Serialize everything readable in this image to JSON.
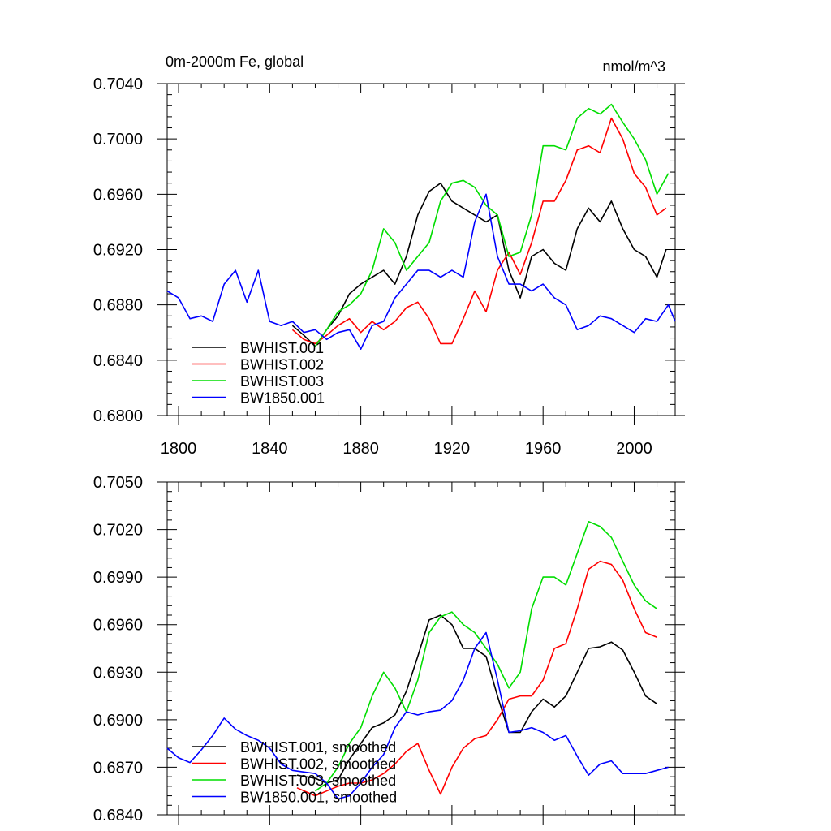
{
  "chart_data": [
    {
      "type": "line",
      "title": "0m-2000m Fe, global",
      "units": "nmol/m^3",
      "xlabel": "",
      "ylabel": "",
      "xlim": [
        1795,
        2018
      ],
      "ylim": [
        0.68,
        0.704
      ],
      "x_ticks": [
        {
          "v": 1800,
          "label": "1800"
        },
        {
          "v": 1840,
          "label": "1840"
        },
        {
          "v": 1880,
          "label": "1880"
        },
        {
          "v": 1920,
          "label": "1920"
        },
        {
          "v": 1960,
          "label": "1960"
        },
        {
          "v": 2000,
          "label": "2000"
        }
      ],
      "y_ticks": [
        {
          "v": 0.68,
          "label": "0.6800"
        },
        {
          "v": 0.684,
          "label": "0.6840"
        },
        {
          "v": 0.688,
          "label": "0.6880"
        },
        {
          "v": 0.692,
          "label": "0.6920"
        },
        {
          "v": 0.696,
          "label": "0.6960"
        },
        {
          "v": 0.7,
          "label": "0.7000"
        },
        {
          "v": 0.704,
          "label": "0.7040"
        }
      ],
      "legend_position": "bottom-left",
      "series": [
        {
          "name": "BWHIST.001",
          "color": "#000000",
          "x": [
            1850,
            1855,
            1860,
            1865,
            1870,
            1875,
            1880,
            1885,
            1890,
            1895,
            1900,
            1905,
            1910,
            1915,
            1920,
            1925,
            1930,
            1935,
            1940,
            1945,
            1950,
            1955,
            1960,
            1965,
            1970,
            1975,
            1980,
            1985,
            1990,
            1995,
            2000,
            2005,
            2010,
            2014
          ],
          "y": [
            0.6865,
            0.6858,
            0.685,
            0.6862,
            0.6872,
            0.6888,
            0.6895,
            0.69,
            0.6905,
            0.6895,
            0.6915,
            0.6945,
            0.6962,
            0.6968,
            0.6955,
            0.695,
            0.6945,
            0.694,
            0.6945,
            0.6905,
            0.6885,
            0.6915,
            0.692,
            0.691,
            0.6905,
            0.6935,
            0.695,
            0.694,
            0.6955,
            0.6935,
            0.692,
            0.6915,
            0.69,
            0.692
          ]
        },
        {
          "name": "BWHIST.002",
          "color": "#ff0000",
          "x": [
            1850,
            1855,
            1860,
            1865,
            1870,
            1875,
            1880,
            1885,
            1890,
            1895,
            1900,
            1905,
            1910,
            1915,
            1920,
            1925,
            1930,
            1935,
            1940,
            1945,
            1950,
            1955,
            1960,
            1965,
            1970,
            1975,
            1980,
            1985,
            1990,
            1995,
            2000,
            2005,
            2010,
            2014
          ],
          "y": [
            0.6862,
            0.6855,
            0.6852,
            0.6858,
            0.6865,
            0.687,
            0.686,
            0.6868,
            0.6862,
            0.6868,
            0.6878,
            0.6882,
            0.687,
            0.6852,
            0.6852,
            0.687,
            0.689,
            0.6875,
            0.6905,
            0.6918,
            0.6902,
            0.6925,
            0.6955,
            0.6955,
            0.697,
            0.6992,
            0.6995,
            0.699,
            0.7015,
            0.7,
            0.6975,
            0.6965,
            0.6945,
            0.695
          ]
        },
        {
          "name": "BWHIST.003",
          "color": "#00dd00",
          "x": [
            1860,
            1865,
            1870,
            1875,
            1880,
            1885,
            1890,
            1895,
            1900,
            1905,
            1910,
            1915,
            1920,
            1925,
            1930,
            1935,
            1940,
            1945,
            1950,
            1955,
            1960,
            1965,
            1970,
            1975,
            1980,
            1985,
            1990,
            1995,
            2000,
            2005,
            2010,
            2015
          ],
          "y": [
            0.685,
            0.6862,
            0.6875,
            0.688,
            0.6888,
            0.6905,
            0.6935,
            0.6925,
            0.6905,
            0.6915,
            0.6925,
            0.6955,
            0.6968,
            0.697,
            0.6965,
            0.6952,
            0.6945,
            0.6915,
            0.6918,
            0.6945,
            0.6995,
            0.6995,
            0.6992,
            0.7015,
            0.7022,
            0.7018,
            0.7025,
            0.7012,
            0.7,
            0.6985,
            0.696,
            0.6975
          ]
        },
        {
          "name": "BW1850.001",
          "color": "#0000ff",
          "x": [
            1795,
            1800,
            1805,
            1810,
            1815,
            1820,
            1825,
            1830,
            1835,
            1840,
            1845,
            1850,
            1855,
            1860,
            1865,
            1870,
            1875,
            1880,
            1885,
            1890,
            1895,
            1900,
            1905,
            1910,
            1915,
            1920,
            1925,
            1930,
            1935,
            1940,
            1945,
            1950,
            1955,
            1960,
            1965,
            1970,
            1975,
            1980,
            1985,
            1990,
            1995,
            2000,
            2005,
            2010,
            2015,
            2018
          ],
          "y": [
            0.689,
            0.6885,
            0.687,
            0.6872,
            0.6868,
            0.6895,
            0.6905,
            0.6882,
            0.6905,
            0.6868,
            0.6865,
            0.6868,
            0.686,
            0.6862,
            0.6855,
            0.686,
            0.6862,
            0.6848,
            0.6865,
            0.6868,
            0.6885,
            0.6895,
            0.6905,
            0.6905,
            0.69,
            0.6905,
            0.69,
            0.694,
            0.696,
            0.6915,
            0.6895,
            0.6895,
            0.689,
            0.6895,
            0.6885,
            0.688,
            0.6862,
            0.6865,
            0.6872,
            0.687,
            0.6865,
            0.686,
            0.687,
            0.6868,
            0.688,
            0.6868
          ]
        }
      ]
    },
    {
      "type": "line",
      "title": "",
      "xlabel": "",
      "ylabel": "",
      "xlim": [
        1795,
        2018
      ],
      "ylim": [
        0.684,
        0.705
      ],
      "x_ticks": [
        {
          "v": 1800,
          "label": ""
        },
        {
          "v": 1840,
          "label": ""
        },
        {
          "v": 1880,
          "label": ""
        },
        {
          "v": 1920,
          "label": ""
        },
        {
          "v": 1960,
          "label": ""
        },
        {
          "v": 2000,
          "label": ""
        }
      ],
      "y_ticks": [
        {
          "v": 0.684,
          "label": "0.6840"
        },
        {
          "v": 0.687,
          "label": "0.6870"
        },
        {
          "v": 0.69,
          "label": "0.6900"
        },
        {
          "v": 0.693,
          "label": "0.6930"
        },
        {
          "v": 0.696,
          "label": "0.6960"
        },
        {
          "v": 0.699,
          "label": "0.6990"
        },
        {
          "v": 0.702,
          "label": "0.7020"
        },
        {
          "v": 0.705,
          "label": "0.7050"
        }
      ],
      "legend_position": "bottom-left",
      "series": [
        {
          "name": "BWHIST.001, smoothed",
          "color": "#000000",
          "x": [
            1852,
            1860,
            1865,
            1870,
            1875,
            1880,
            1885,
            1890,
            1895,
            1900,
            1905,
            1910,
            1915,
            1920,
            1925,
            1930,
            1935,
            1940,
            1945,
            1950,
            1955,
            1960,
            1965,
            1970,
            1975,
            1980,
            1985,
            1990,
            1995,
            2000,
            2005,
            2010
          ],
          "y": [
            0.6865,
            0.6863,
            0.686,
            0.6862,
            0.6875,
            0.6885,
            0.6895,
            0.6898,
            0.6903,
            0.6918,
            0.694,
            0.6963,
            0.6966,
            0.696,
            0.6945,
            0.6945,
            0.694,
            0.6915,
            0.6892,
            0.6892,
            0.6905,
            0.6913,
            0.6908,
            0.6915,
            0.693,
            0.6945,
            0.6946,
            0.6949,
            0.6944,
            0.693,
            0.6915,
            0.691
          ]
        },
        {
          "name": "BWHIST.002, smoothed",
          "color": "#ff0000",
          "x": [
            1852,
            1860,
            1865,
            1870,
            1875,
            1880,
            1885,
            1890,
            1895,
            1900,
            1905,
            1910,
            1915,
            1920,
            1925,
            1930,
            1935,
            1940,
            1945,
            1950,
            1955,
            1960,
            1965,
            1970,
            1975,
            1980,
            1985,
            1990,
            1995,
            2000,
            2005,
            2010
          ],
          "y": [
            0.6857,
            0.6852,
            0.6855,
            0.6858,
            0.686,
            0.686,
            0.6862,
            0.6866,
            0.6872,
            0.688,
            0.6885,
            0.6868,
            0.6853,
            0.687,
            0.6882,
            0.6888,
            0.689,
            0.69,
            0.6913,
            0.6915,
            0.6915,
            0.6925,
            0.6945,
            0.6948,
            0.697,
            0.6995,
            0.7,
            0.6998,
            0.6988,
            0.697,
            0.6955,
            0.6952
          ]
        },
        {
          "name": "BWHIST.003, smoothed",
          "color": "#00dd00",
          "x": [
            1860,
            1865,
            1870,
            1875,
            1880,
            1885,
            1890,
            1895,
            1900,
            1905,
            1910,
            1915,
            1920,
            1925,
            1930,
            1935,
            1940,
            1945,
            1950,
            1955,
            1960,
            1965,
            1970,
            1975,
            1980,
            1985,
            1990,
            1995,
            2000,
            2005,
            2010
          ],
          "y": [
            0.6855,
            0.686,
            0.687,
            0.6885,
            0.6895,
            0.6915,
            0.693,
            0.692,
            0.6905,
            0.6925,
            0.6955,
            0.6965,
            0.6968,
            0.696,
            0.6955,
            0.6945,
            0.6935,
            0.692,
            0.693,
            0.697,
            0.699,
            0.699,
            0.6985,
            0.7005,
            0.7025,
            0.7022,
            0.7015,
            0.7,
            0.6985,
            0.6975,
            0.697
          ]
        },
        {
          "name": "BW1850.001, smoothed",
          "color": "#0000ff",
          "x": [
            1795,
            1800,
            1805,
            1810,
            1815,
            1820,
            1825,
            1830,
            1835,
            1840,
            1845,
            1850,
            1855,
            1860,
            1865,
            1870,
            1875,
            1880,
            1885,
            1890,
            1895,
            1900,
            1905,
            1910,
            1915,
            1920,
            1925,
            1930,
            1935,
            1940,
            1945,
            1950,
            1955,
            1960,
            1965,
            1970,
            1975,
            1980,
            1985,
            1990,
            1995,
            2000,
            2005,
            2010,
            2015
          ],
          "y": [
            0.6882,
            0.6876,
            0.6873,
            0.6881,
            0.689,
            0.6901,
            0.6894,
            0.689,
            0.6887,
            0.6882,
            0.6872,
            0.6868,
            0.6867,
            0.6866,
            0.686,
            0.685,
            0.6852,
            0.686,
            0.687,
            0.6878,
            0.6895,
            0.6905,
            0.6903,
            0.6905,
            0.6906,
            0.6912,
            0.6925,
            0.6945,
            0.6955,
            0.6925,
            0.6892,
            0.6893,
            0.6895,
            0.6892,
            0.6887,
            0.689,
            0.6877,
            0.6865,
            0.6872,
            0.6874,
            0.6866,
            0.6866,
            0.6866,
            0.6868,
            0.687
          ]
        }
      ]
    }
  ]
}
